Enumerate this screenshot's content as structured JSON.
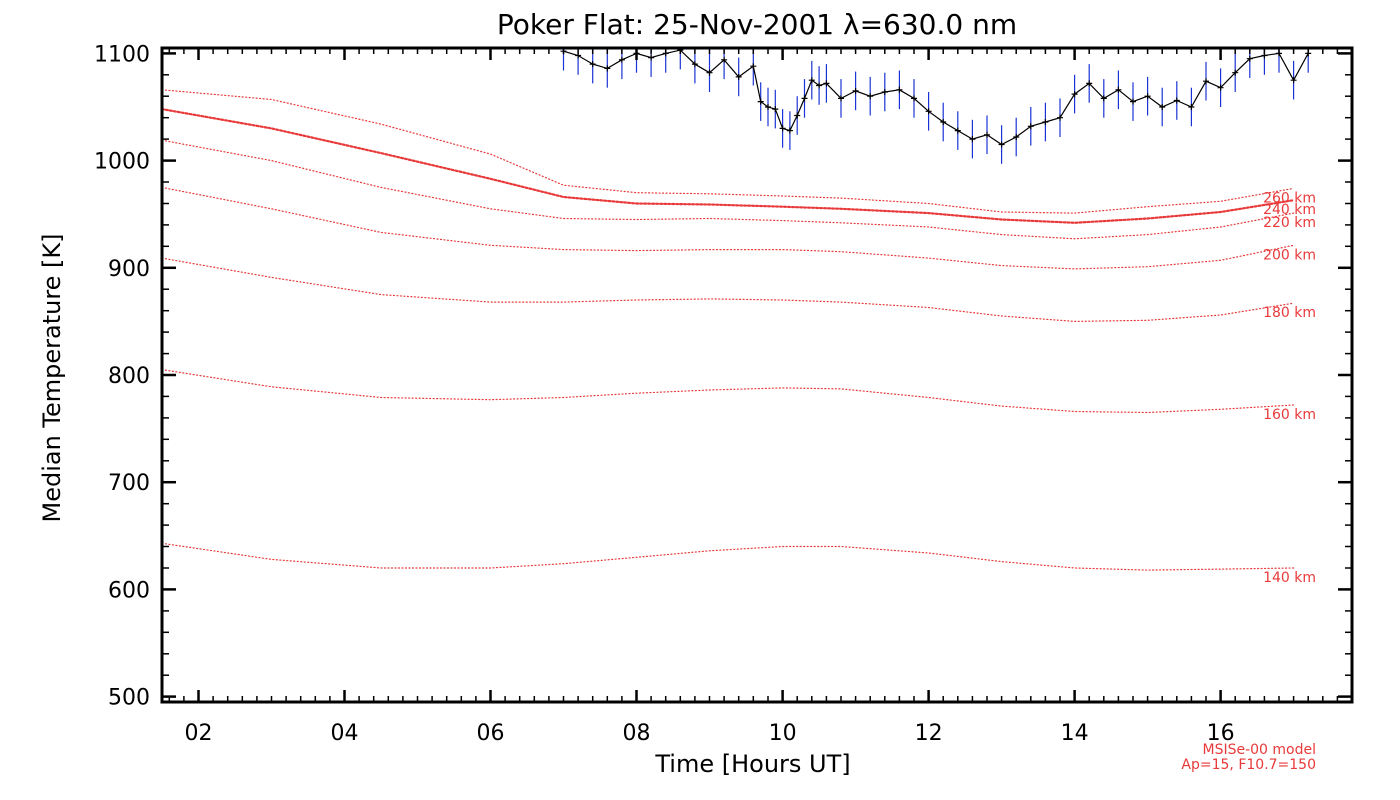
{
  "chart_data": {
    "type": "line",
    "title": "Poker Flat: 25-Nov-2001 λ=630.0 nm",
    "xlabel": "Time [Hours UT]",
    "ylabel": "Median Temperature [K]",
    "xlim": [
      1.5,
      17.8
    ],
    "ylim": [
      495,
      1105
    ],
    "x_tick_labels": [
      {
        "value": 2,
        "label": "02"
      },
      {
        "value": 4,
        "label": "04"
      },
      {
        "value": 6,
        "label": "06"
      },
      {
        "value": 8,
        "label": "08"
      },
      {
        "value": 10,
        "label": "10"
      },
      {
        "value": 12,
        "label": "12"
      },
      {
        "value": 14,
        "label": "14"
      },
      {
        "value": 16,
        "label": "16"
      }
    ],
    "y_tick_labels": [
      {
        "value": 500,
        "label": "500"
      },
      {
        "value": 600,
        "label": "600"
      },
      {
        "value": 700,
        "label": "700"
      },
      {
        "value": 800,
        "label": "800"
      },
      {
        "value": 900,
        "label": "900"
      },
      {
        "value": 1000,
        "label": "1000"
      },
      {
        "value": 1100,
        "label": "1100"
      }
    ],
    "model_curves": [
      {
        "name": "260 km",
        "highlight": false,
        "x": [
          1.5,
          3,
          4.5,
          6,
          7,
          8,
          9,
          10,
          10.8,
          12,
          13,
          14,
          15,
          16,
          17
        ],
        "values": [
          1066,
          1057,
          1034,
          1006,
          977,
          970,
          969,
          967,
          965,
          960,
          952,
          951,
          957,
          962,
          974
        ]
      },
      {
        "name": "240 km",
        "highlight": true,
        "x": [
          1.5,
          3,
          4.5,
          6,
          7,
          8,
          9,
          10,
          10.8,
          12,
          13,
          14,
          15,
          16,
          17
        ],
        "values": [
          1048,
          1030,
          1007,
          983,
          966,
          960,
          959,
          957,
          955,
          951,
          945,
          942,
          946,
          952,
          963
        ]
      },
      {
        "name": "220 km",
        "highlight": false,
        "x": [
          1.5,
          3,
          4.5,
          6,
          7,
          8,
          9,
          10,
          10.8,
          12,
          13,
          14,
          15,
          16,
          17
        ],
        "values": [
          1019,
          1000,
          975,
          955,
          946,
          945,
          946,
          944,
          942,
          938,
          931,
          927,
          931,
          938,
          951
        ]
      },
      {
        "name": "200 km",
        "highlight": false,
        "x": [
          1.5,
          3,
          4.5,
          6,
          7,
          8,
          9,
          10,
          10.8,
          12,
          13,
          14,
          15,
          16,
          17
        ],
        "values": [
          975,
          955,
          933,
          921,
          917,
          916,
          917,
          917,
          915,
          909,
          902,
          899,
          901,
          907,
          921
        ]
      },
      {
        "name": "180 km",
        "highlight": false,
        "x": [
          1.5,
          3,
          4.5,
          6,
          7,
          8,
          9,
          10,
          10.8,
          12,
          13,
          14,
          15,
          16,
          17
        ],
        "values": [
          909,
          891,
          875,
          868,
          868,
          870,
          871,
          870,
          868,
          863,
          855,
          850,
          851,
          856,
          867
        ]
      },
      {
        "name": "160 km",
        "highlight": false,
        "x": [
          1.5,
          3,
          4.5,
          6,
          7,
          8,
          9,
          10,
          10.8,
          12,
          13,
          14,
          15,
          16,
          17
        ],
        "values": [
          805,
          789,
          779,
          777,
          779,
          783,
          786,
          788,
          787,
          779,
          771,
          766,
          765,
          768,
          772
        ]
      },
      {
        "name": "140 km",
        "highlight": false,
        "x": [
          1.5,
          3,
          4.5,
          6,
          7,
          8,
          9,
          10,
          10.8,
          12,
          13,
          14,
          15,
          16,
          17
        ],
        "values": [
          643,
          628,
          620,
          620,
          624,
          630,
          636,
          640,
          640,
          634,
          626,
          620,
          618,
          619,
          620
        ]
      }
    ],
    "observed": {
      "name": "median temperature",
      "x": [
        7.0,
        7.2,
        7.4,
        7.6,
        7.8,
        8.0,
        8.2,
        8.4,
        8.6,
        8.8,
        9.0,
        9.2,
        9.4,
        9.6,
        9.7,
        9.8,
        9.9,
        10.0,
        10.1,
        10.2,
        10.3,
        10.4,
        10.5,
        10.6,
        10.8,
        11.0,
        11.2,
        11.4,
        11.6,
        11.8,
        12.0,
        12.2,
        12.4,
        12.6,
        12.8,
        13.0,
        13.2,
        13.4,
        13.6,
        13.8,
        14.0,
        14.2,
        14.4,
        14.6,
        14.8,
        15.0,
        15.2,
        15.4,
        15.6,
        15.8,
        16.0,
        16.2,
        16.4,
        16.6,
        16.8,
        17.0,
        17.2
      ],
      "values": [
        1102,
        1098,
        1090,
        1086,
        1094,
        1100,
        1096,
        1100,
        1103,
        1090,
        1082,
        1094,
        1078,
        1088,
        1055,
        1050,
        1048,
        1030,
        1028,
        1042,
        1058,
        1075,
        1070,
        1072,
        1058,
        1065,
        1060,
        1064,
        1066,
        1058,
        1046,
        1036,
        1028,
        1020,
        1024,
        1015,
        1022,
        1032,
        1036,
        1040,
        1062,
        1072,
        1058,
        1066,
        1055,
        1060,
        1050,
        1056,
        1050,
        1074,
        1068,
        1082,
        1095,
        1098,
        1100,
        1075,
        1100
      ],
      "error": [
        18,
        18,
        18,
        18,
        18,
        18,
        18,
        18,
        18,
        18,
        18,
        18,
        18,
        18,
        18,
        18,
        18,
        18,
        18,
        18,
        18,
        18,
        18,
        18,
        18,
        18,
        18,
        18,
        18,
        18,
        18,
        18,
        18,
        18,
        18,
        18,
        18,
        18,
        18,
        18,
        18,
        18,
        18,
        18,
        18,
        18,
        18,
        18,
        18,
        18,
        18,
        18,
        18,
        18,
        18,
        18,
        18
      ]
    },
    "annotation": [
      "MSISe-00 model",
      "Ap=15, F10.7=150"
    ],
    "colors": {
      "model": "#e83a3a",
      "observed_line": "#000000",
      "error_bars": "#1a33d6"
    },
    "grid": false
  }
}
